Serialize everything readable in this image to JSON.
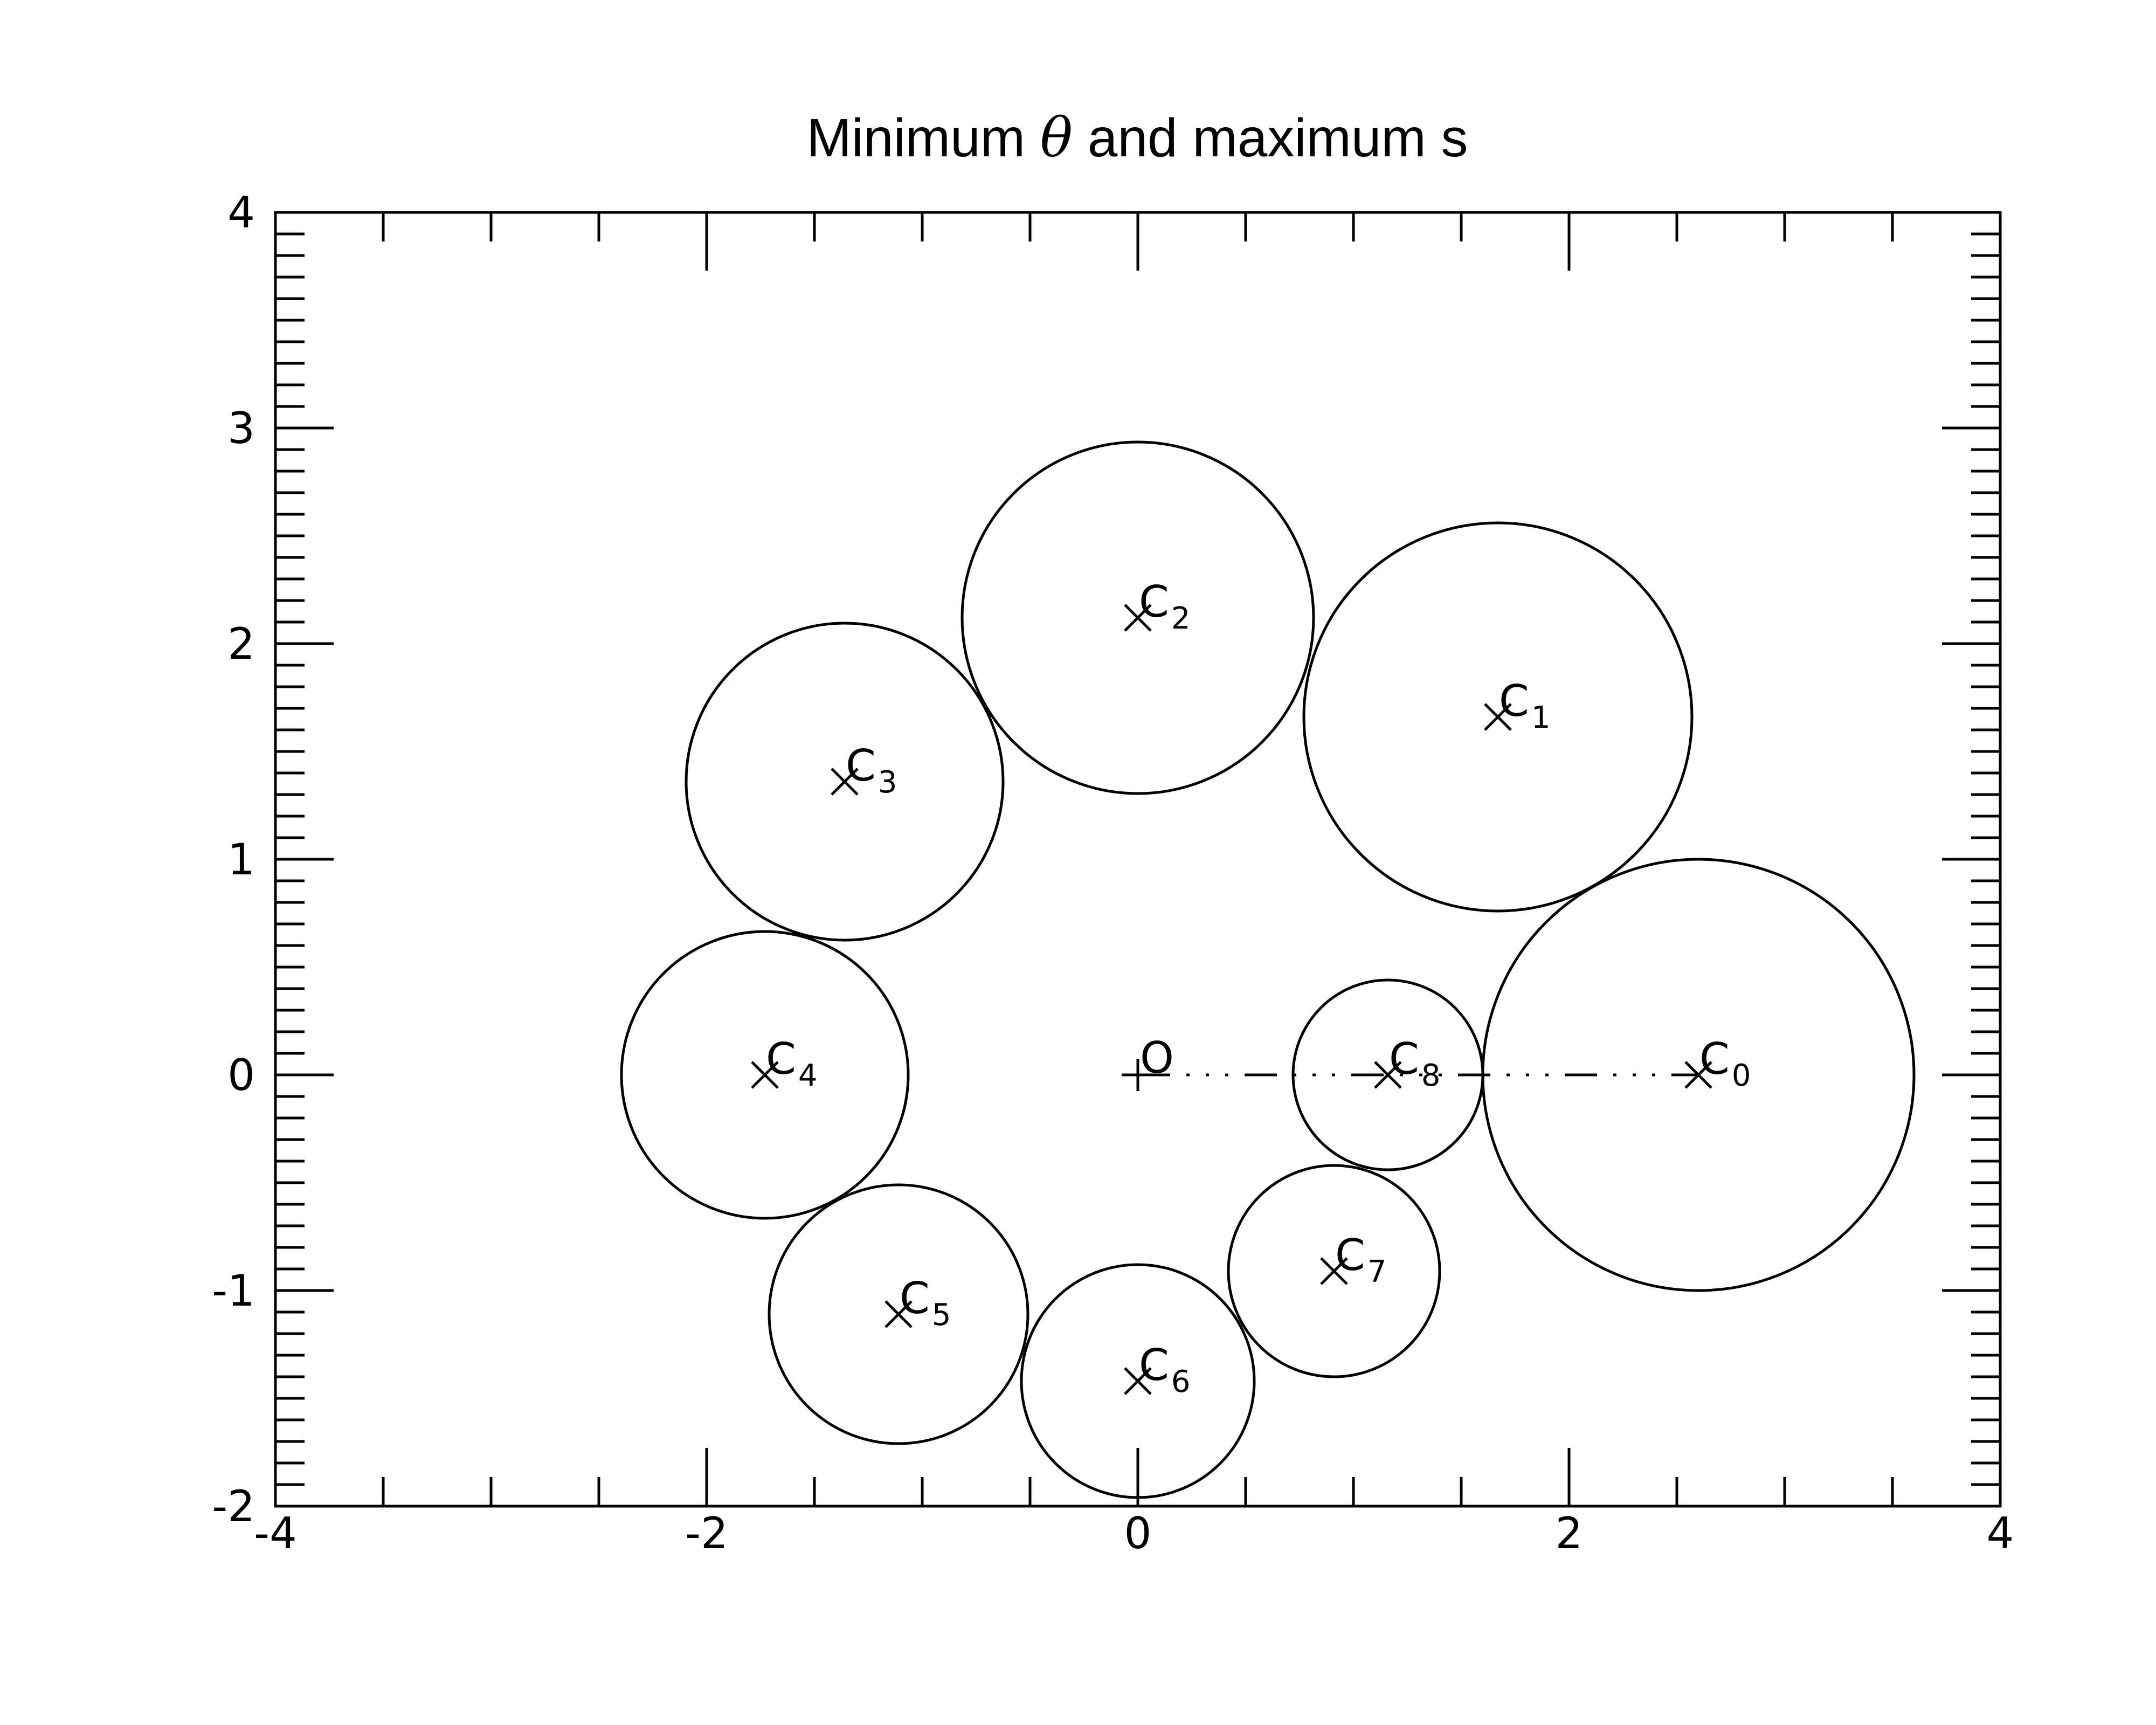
{
  "chart_data": {
    "type": "scatter",
    "title_prefix": "Minimum ",
    "title_symbol": "θ",
    "title_suffix": " and maximum s",
    "xlim": [
      -4,
      4
    ],
    "ylim": [
      -2,
      4
    ],
    "x_ticks": [
      -4,
      -2,
      0,
      2,
      4
    ],
    "x_tick_labels": [
      "-4",
      "-2",
      "0",
      "2",
      "4"
    ],
    "y_ticks": [
      -2,
      -1,
      0,
      1,
      2,
      3,
      4
    ],
    "y_tick_labels": [
      "-2",
      "-1",
      "0",
      "1",
      "2",
      "3",
      "4"
    ],
    "origin": {
      "label": "O",
      "x": 0,
      "y": 0
    },
    "circles": [
      {
        "label": "C",
        "sub": "0",
        "x": 2.6,
        "y": 0.0,
        "r": 1.0
      },
      {
        "label": "C",
        "sub": "1",
        "x": 1.67,
        "y": 1.66,
        "r": 0.9
      },
      {
        "label": "C",
        "sub": "2",
        "x": 0.0,
        "y": 2.12,
        "r": 0.815
      },
      {
        "label": "C",
        "sub": "3",
        "x": -1.36,
        "y": 1.36,
        "r": 0.735
      },
      {
        "label": "C",
        "sub": "4",
        "x": -1.73,
        "y": 0.0,
        "r": 0.665
      },
      {
        "label": "C",
        "sub": "5",
        "x": -1.11,
        "y": -1.11,
        "r": 0.6
      },
      {
        "label": "C",
        "sub": "6",
        "x": 0.0,
        "y": -1.42,
        "r": 0.54
      },
      {
        "label": "C",
        "sub": "7",
        "x": 0.91,
        "y": -0.91,
        "r": 0.49
      },
      {
        "label": "C",
        "sub": "8",
        "x": 1.16,
        "y": 0.0,
        "r": 0.44
      }
    ],
    "connector": {
      "from": [
        0,
        0
      ],
      "to": [
        2.6,
        0
      ],
      "style": "dash-dot-dot"
    }
  }
}
